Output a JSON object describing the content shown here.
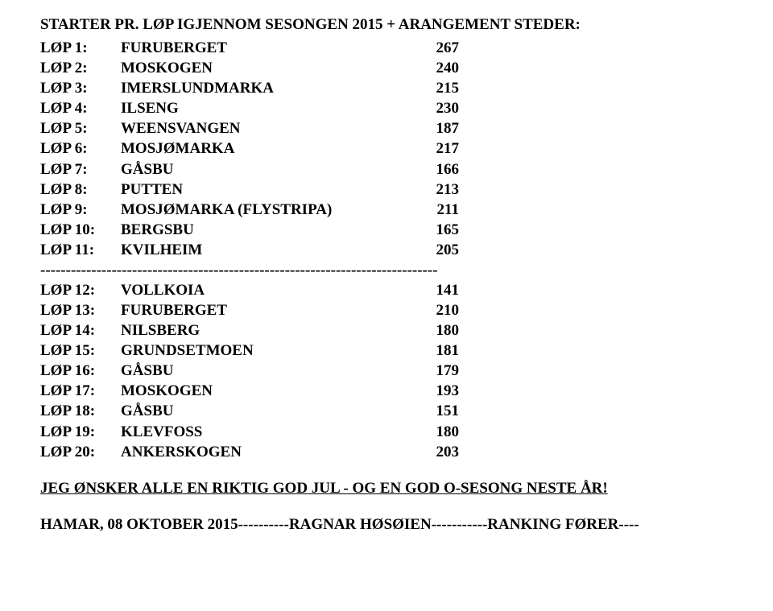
{
  "title": "STARTER PR. LØP IGJENNOM SESONGEN 2015 + ARANGEMENT STEDER:",
  "rows1": [
    {
      "label": "LØP 1:",
      "name": "FURUBERGET",
      "val": "267"
    },
    {
      "label": "LØP 2:",
      "name": "MOSKOGEN",
      "val": "240"
    },
    {
      "label": "LØP 3:",
      "name": "IMERSLUNDMARKA",
      "val": "215"
    },
    {
      "label": "LØP 4:",
      "name": "ILSENG",
      "val": "230"
    },
    {
      "label": "LØP 5:",
      "name": "WEENSVANGEN",
      "val": "187"
    },
    {
      "label": "LØP 6:",
      "name": "MOSJØMARKA",
      "val": "217"
    },
    {
      "label": "LØP 7:",
      "name": "GÅSBU",
      "val": "166"
    },
    {
      "label": "LØP 8:",
      "name": "PUTTEN",
      "val": "213"
    },
    {
      "label": "LØP 9:",
      "name": "MOSJØMARKA (FLYSTRIPA)",
      "val": "211"
    },
    {
      "label": "LØP 10:",
      "name": "BERGSBU",
      "val": "165"
    },
    {
      "label": "LØP 11:",
      "name": "KVILHEIM",
      "val": "205"
    }
  ],
  "separator": "------------------------------------------------------------------------------",
  "rows2": [
    {
      "label": "LØP 12:",
      "name": "VOLLKOIA",
      "val": "141"
    },
    {
      "label": "LØP 13:",
      "name": "FURUBERGET",
      "val": "210"
    },
    {
      "label": "LØP 14:",
      "name": "NILSBERG",
      "val": "180"
    },
    {
      "label": "LØP 15:",
      "name": "GRUNDSETMOEN",
      "val": "181"
    },
    {
      "label": "LØP 16:",
      "name": "GÅSBU",
      "val": "179"
    },
    {
      "label": "LØP 17:",
      "name": "MOSKOGEN",
      "val": "193"
    },
    {
      "label": "LØP 18:",
      "name": "GÅSBU",
      "val": "151"
    },
    {
      "label": "LØP 19:",
      "name": "KLEVFOSS",
      "val": "180"
    },
    {
      "label": "LØP 20:",
      "name": "ANKERSKOGEN",
      "val": "203"
    }
  ],
  "wish": "JEG ØNSKER ALLE EN RIKTIG GOD JUL - OG EN GOD  O-SESONG NESTE ÅR!",
  "footer": "HAMAR, 08 OKTOBER 2015----------RAGNAR HØSØIEN-----------RANKING FØRER----"
}
